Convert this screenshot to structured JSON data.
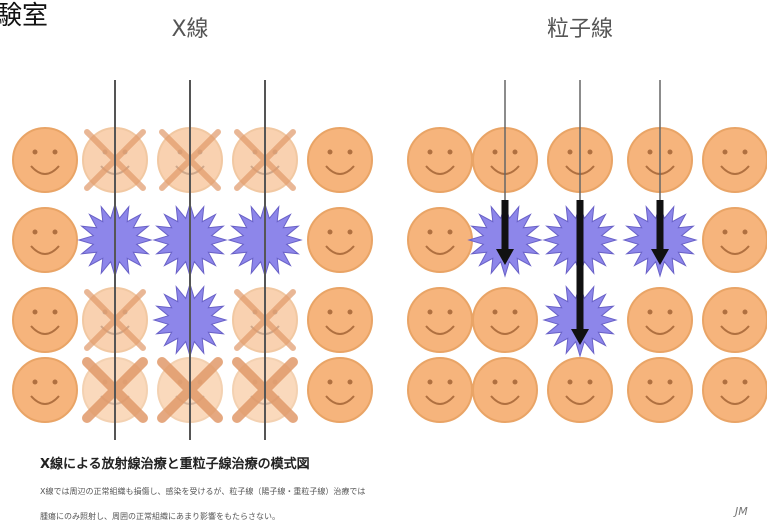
{
  "header": {
    "corner": "験室",
    "left_title": "X線",
    "right_title": "粒子線"
  },
  "caption": {
    "title": "X線による放射線治療と重粒子線治療の模式図",
    "lines": [
      "X線では周辺の正常組織も損傷し、感染を受けるが、粒子線（陽子線・重粒子線）治療では",
      "腫瘍にのみ照射し、周囲の正常組織にあまり影響をもたらさない。"
    ],
    "signature": "JM"
  }
}
